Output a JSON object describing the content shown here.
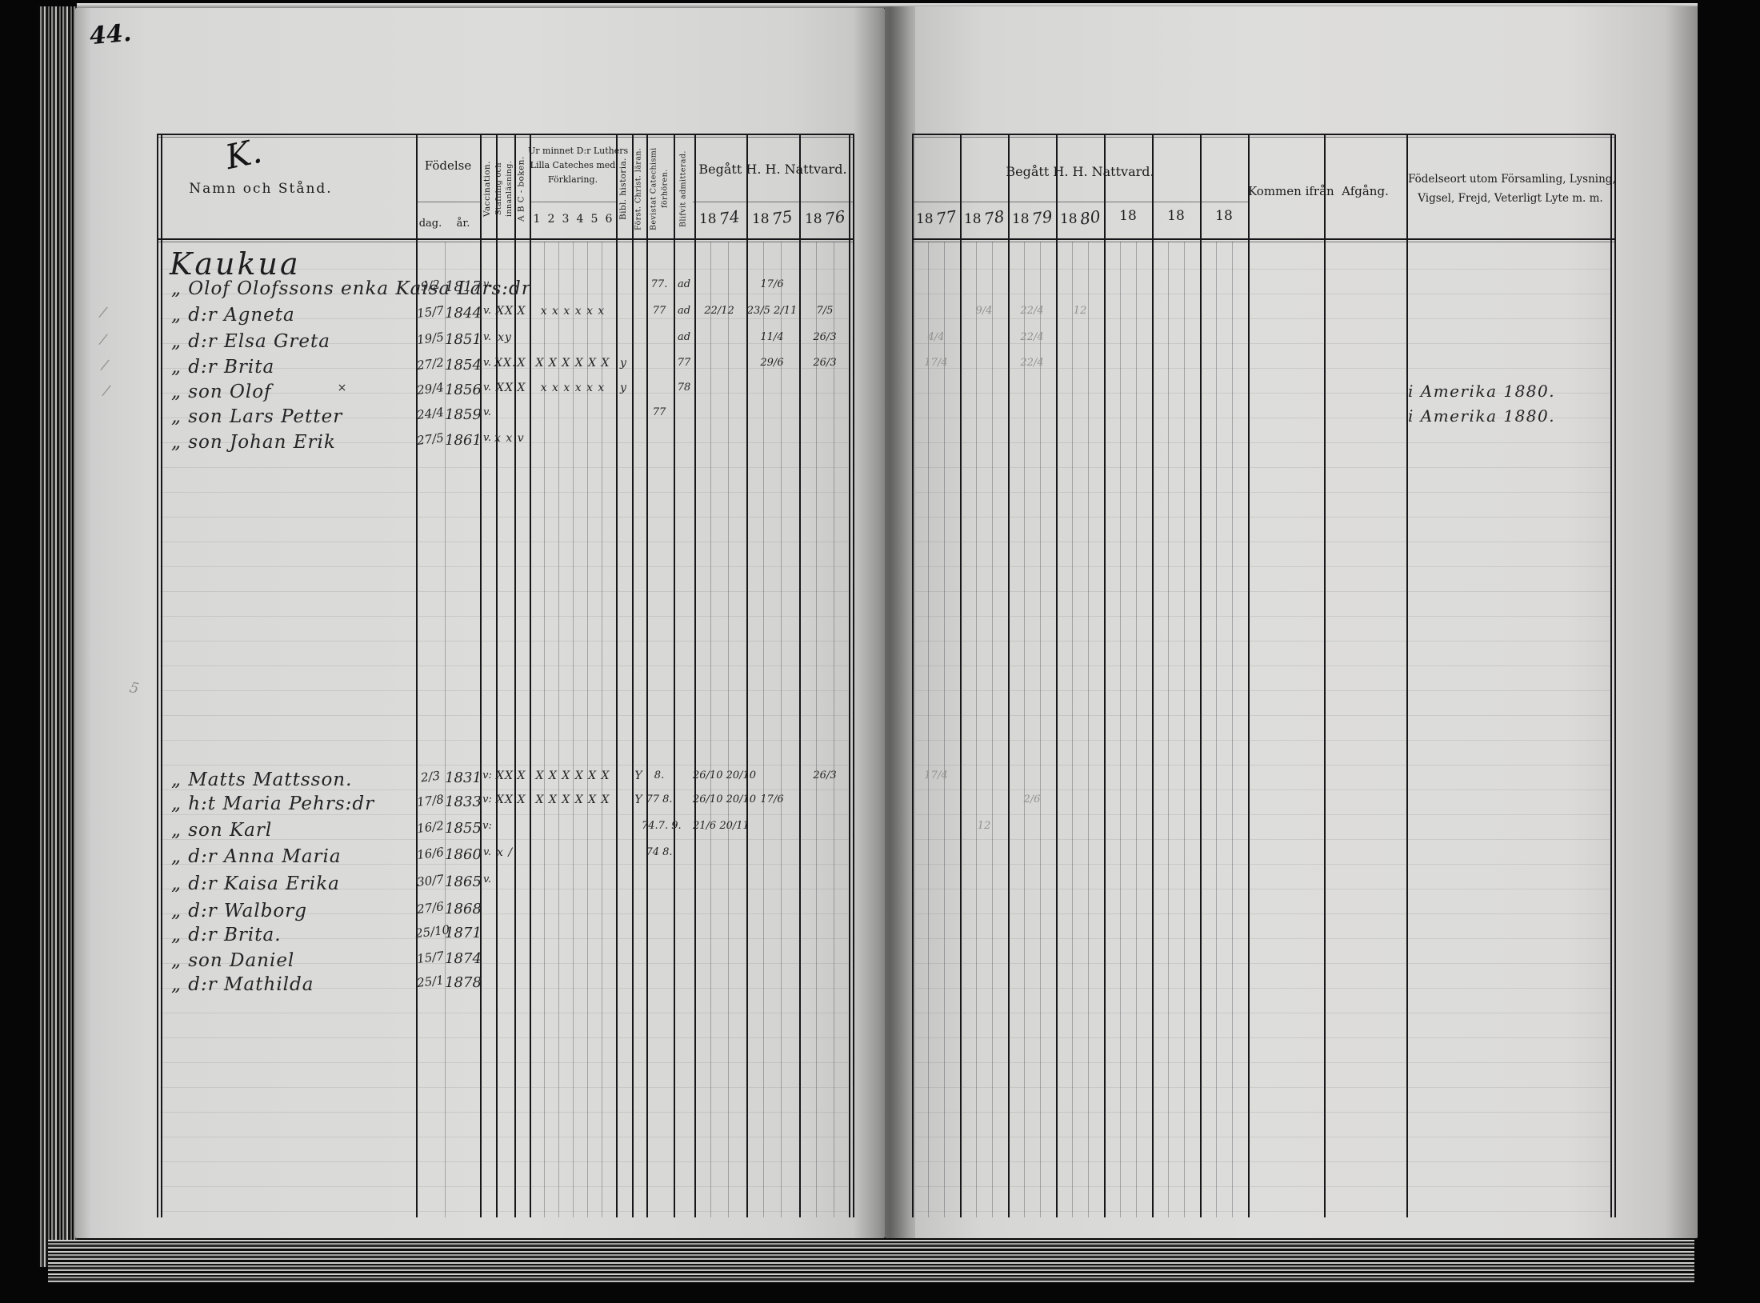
{
  "scan": {
    "page_number": "44."
  },
  "left_table": {
    "flourish": "K.",
    "name_header": "Namn och Stånd.",
    "birth_header": "Födelse",
    "birth_sub_day": "dag.",
    "birth_sub_year": "år.",
    "col_vaccination": "Vaccination.",
    "col_stafning_1": "Stafning och",
    "col_stafning_2": "innanläsning.",
    "col_abc": "A B C - boken.",
    "catechism_line1": "Ur minnet D:r Luthers",
    "catechism_line2": "Lilla Cateches med",
    "catechism_line3": "Förklaring.",
    "catechism_sub": [
      "1",
      "2",
      "3",
      "4",
      "5",
      "6"
    ],
    "col_bibl": "Bibl. historia.",
    "col_forst": "Först. Christ. läran.",
    "col_bevistat_1": "Bevistat Catechismi",
    "col_bevistat_2": "förhören.",
    "col_admitterad": "Blifvit admitterad.",
    "nattvard_header": "Begått H. H. Nattvard.",
    "years": [
      {
        "printed": "18",
        "hand": "74"
      },
      {
        "printed": "18",
        "hand": "75"
      },
      {
        "printed": "18",
        "hand": "76"
      }
    ]
  },
  "right_table": {
    "nattvard_header": "Begått H. H. Nattvard.",
    "years": [
      {
        "printed": "18",
        "hand": "77"
      },
      {
        "printed": "18",
        "hand": "78"
      },
      {
        "printed": "18",
        "hand": "79"
      },
      {
        "printed": "18",
        "hand": "80"
      },
      {
        "printed": "18",
        "hand": ""
      },
      {
        "printed": "18",
        "hand": ""
      },
      {
        "printed": "18",
        "hand": ""
      }
    ],
    "col_kommen": "Kommen ifrån",
    "col_afgang": "Afgång.",
    "col_fodelseort_1": "Födelseort utom Församling, Lysning,",
    "col_fodelseort_2": "Vigsel, Frejd, Veterligt Lyte m. m."
  },
  "records": {
    "place_heading": "Kaukua",
    "group1": [
      {
        "name": "„ Olof Olofssons enka Kaisa Lars:dr",
        "dag": "9/2",
        "ar": "1817",
        "vacc": "v.",
        "bevistat": "77.",
        "admitterad": "ad",
        "y1875": "17/6"
      },
      {
        "name": "„ d:r Agneta",
        "dag": "15/7",
        "ar": "1844",
        "vacc": "v.",
        "stafning": "XX",
        "abc": "X",
        "cat": "x x x x x x",
        "bevistat": "77",
        "admitterad": "ad",
        "y1874": "22/12",
        "y1875": "23/5 2/11",
        "y1876": "7/5",
        "y1878": "9/4",
        "y1879": "22/4",
        "y1880": "12"
      },
      {
        "name": "„ d:r Elsa Greta",
        "dag": "19/5",
        "ar": "1851",
        "vacc": "v.",
        "stafning": "xy",
        "admitterad": "ad",
        "y1875": "11/4",
        "y1876": "26/3",
        "y1877": "4/4",
        "y1879": "22/4"
      },
      {
        "name": "„ d:r Brita",
        "dag": "27/2",
        "ar": "1854",
        "vacc": "v.",
        "stafning": "XX.",
        "abc": "X",
        "cat": "X X X X X X",
        "bibl": "y",
        "admitterad": "77",
        "y1875": "29/6",
        "y1876": "26/3",
        "y1877": "17/4",
        "y1879": "22/4"
      },
      {
        "name": "„ son Olof",
        "cross": "×",
        "dag": "29/4",
        "ar": "1856",
        "vacc": "v.",
        "stafning": "XX",
        "abc": "X",
        "cat": "x x x x x x",
        "bibl": "y",
        "admitterad": "78",
        "fodelseort": "i Amerika 1880."
      },
      {
        "name": "„ son Lars Petter",
        "dag": "24/4",
        "ar": "1859",
        "vacc": "v.",
        "bevistat": "77",
        "fodelseort": "i Amerika 1880."
      },
      {
        "name": "„ son Johan Erik",
        "dag": "27/5",
        "ar": "1861",
        "vacc": "v.",
        "stafning": "x x v"
      }
    ],
    "group2": [
      {
        "name": "„ Matts Mattsson.",
        "dag": "2/3",
        "ar": "1831",
        "vacc": "v:",
        "stafning": "XX",
        "abc": "X",
        "cat": "X X X X X X",
        "forst": "Y",
        "bevistat": "8.",
        "y1874": "26/10 20/10",
        "y1876": "26/3",
        "y1877": "17/4"
      },
      {
        "name": "„ h:t Maria Pehrs:dr",
        "dag": "17/8",
        "ar": "1833",
        "vacc": "v:",
        "stafning": "XX",
        "abc": "X",
        "cat": "X X X X X X",
        "forst": "Y",
        "bevistat": "77 8.",
        "y1874": "26/10 20/10",
        "y1875": "17/6",
        "y1879": "2/6"
      },
      {
        "name": "„ son Karl",
        "dag": "16/2",
        "ar": "1855",
        "vacc": "v:",
        "bevistat": "74.7. 9.",
        "y1874": "21/6 20/11",
        "y1878": "12"
      },
      {
        "name": "„ d:r Anna Maria",
        "dag": "16/6",
        "ar": "1860",
        "vacc": "v.",
        "stafning": "x /",
        "bevistat": "74 8."
      },
      {
        "name": "„ d:r Kaisa Erika",
        "dag": "30/7",
        "ar": "1865",
        "vacc": "v."
      },
      {
        "name": "„ d:r Walborg",
        "dag": "27/6",
        "ar": "1868"
      },
      {
        "name": "„ d:r Brita.",
        "dag": "25/10",
        "ar": "1871"
      },
      {
        "name": "„ son Daniel",
        "dag": "15/7",
        "ar": "1874"
      },
      {
        "name": "„ d:r Mathilda",
        "dag": "25/1",
        "ar": "1878"
      }
    ],
    "margin_marks": [
      "∕",
      "∕",
      "∕",
      "∕",
      "5"
    ]
  }
}
